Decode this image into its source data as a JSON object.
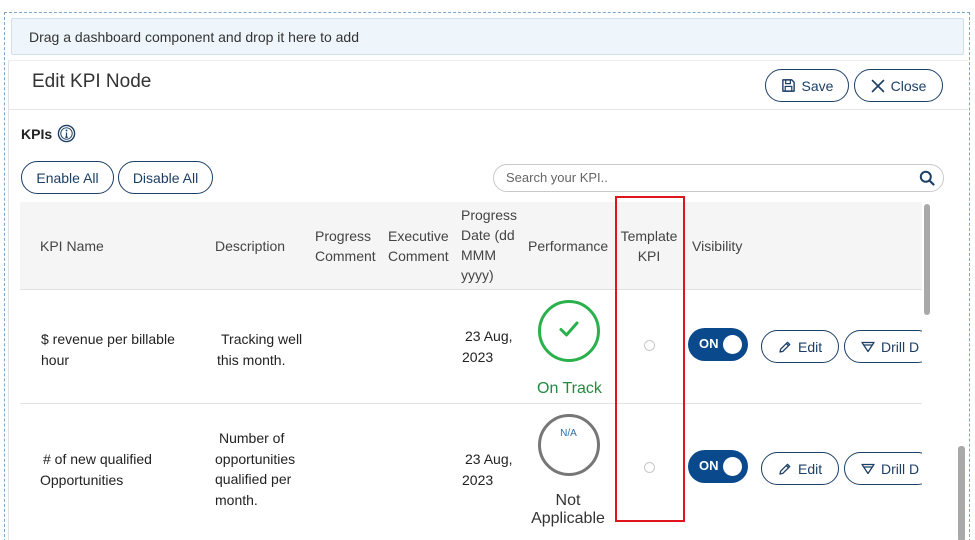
{
  "drop_zone": {
    "text": "Drag a dashboard component and drop it here to add"
  },
  "panel": {
    "title": "Edit KPI Node"
  },
  "actions": {
    "save_label": "Save",
    "close_label": "Close"
  },
  "kpis": {
    "label": "KPIs",
    "enable_all_label": "Enable All",
    "disable_all_label": "Disable All"
  },
  "search": {
    "placeholder": "Search your KPI.."
  },
  "table": {
    "headers": {
      "kpi_name": "KPI Name",
      "description": "Description",
      "progress_comment_1": "Progress",
      "progress_comment_2": "Comment",
      "executive_comment_1": "Executive",
      "executive_comment_2": "Comment",
      "progress_date_1": "Progress",
      "progress_date_2": "Date (dd",
      "progress_date_3": "MMM",
      "progress_date_4": "yyyy)",
      "performance": "Performance",
      "template_kpi_1": "Template",
      "template_kpi_2": "KPI",
      "visibility": "Visibility"
    },
    "rows": [
      {
        "name_1": "$ revenue per billable",
        "name_2": "hour",
        "desc_1": "Tracking well",
        "desc_2": "this month.",
        "date_1": "23 Aug,",
        "date_2": "2023",
        "performance": "On Track",
        "performance_icon": "check-icon",
        "visibility": "ON",
        "edit_label": "Edit",
        "drill_label": "Drill D"
      },
      {
        "name_1": "# of new qualified",
        "name_2": "Opportunities",
        "desc_1": "Number of",
        "desc_2": "opportunities",
        "desc_3": "qualified per",
        "desc_4": "month.",
        "date_1": "23 Aug,",
        "date_2": "2023",
        "performance_badge": "N/A",
        "performance_1": "Not",
        "performance_2": "Applicable",
        "visibility": "ON",
        "edit_label": "Edit",
        "drill_label": "Drill D"
      }
    ]
  },
  "colors": {
    "primary": "#1c3f66",
    "toggle_on": "#0a4a8c",
    "on_track": "#2bb14c",
    "highlight": "#e0151c"
  }
}
